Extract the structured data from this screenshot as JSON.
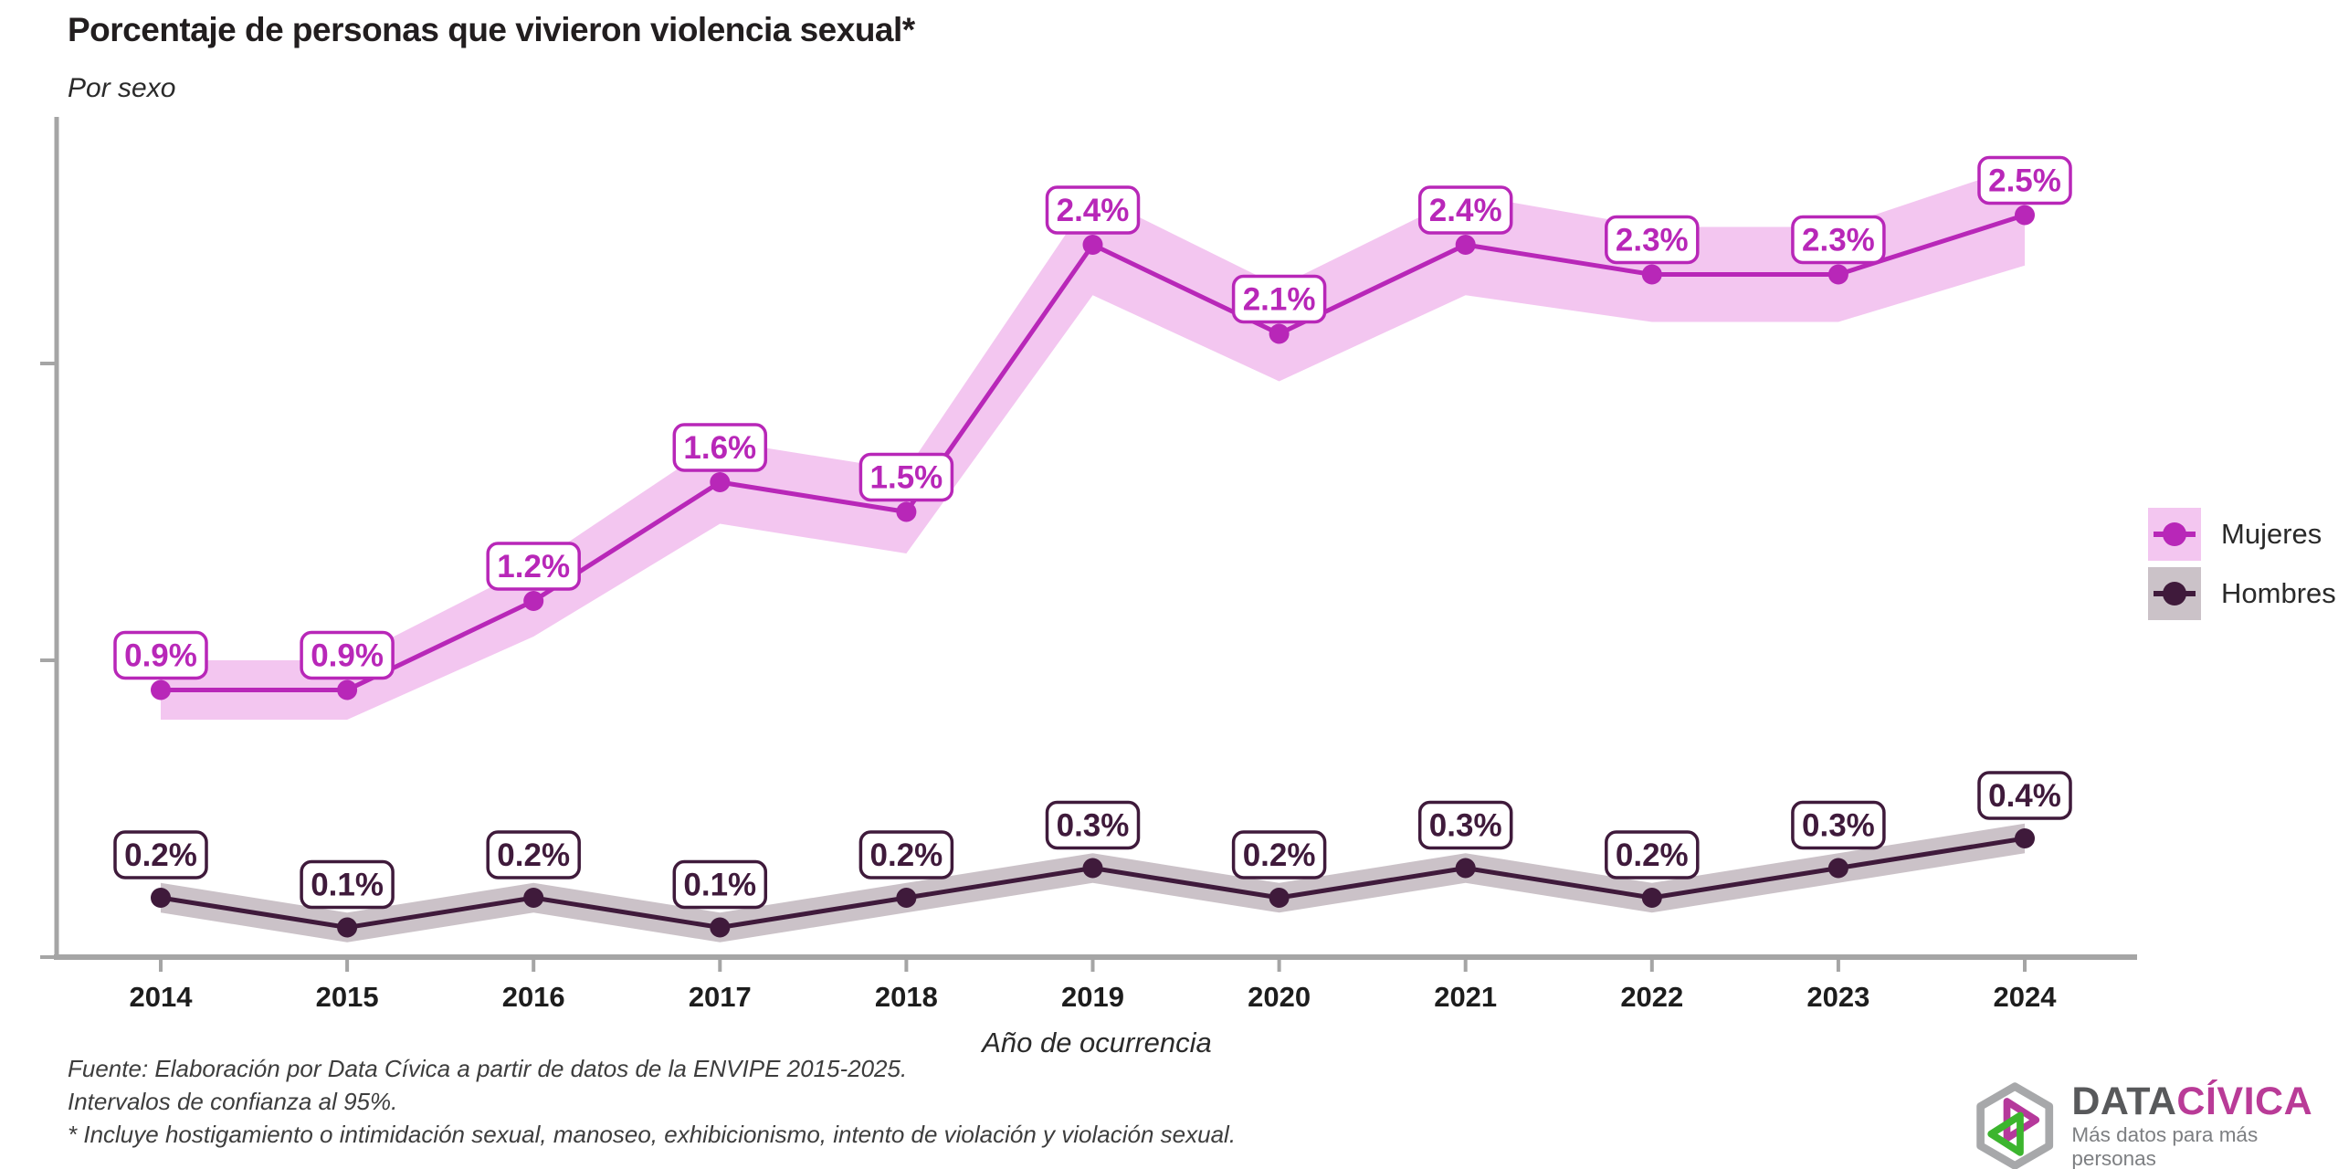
{
  "header": {
    "title": "Porcentaje de personas que vivieron violencia sexual*",
    "subtitle": "Por sexo"
  },
  "chart_data": {
    "type": "line",
    "x": [
      2014,
      2015,
      2016,
      2017,
      2018,
      2019,
      2020,
      2021,
      2022,
      2023,
      2024
    ],
    "xlabel": "Año de ocurrencia",
    "ylabel": "",
    "ylim": [
      0,
      2.9
    ],
    "yticks": [
      0,
      1,
      2
    ],
    "yticks_labeled": false,
    "grid": false,
    "legend_position": "right",
    "axis_color": "#a5a5a5",
    "series": [
      {
        "name": "Mujeres",
        "color": "#b827b8",
        "band_color": "#f3c6f0",
        "values": [
          0.9,
          0.9,
          1.2,
          1.6,
          1.5,
          2.4,
          2.1,
          2.4,
          2.3,
          2.3,
          2.5
        ],
        "labels": [
          "0.9%",
          "0.9%",
          "1.2%",
          "1.6%",
          "1.5%",
          "2.4%",
          "2.1%",
          "2.4%",
          "2.3%",
          "2.3%",
          "2.5%"
        ],
        "ci_halfwidth": [
          0.1,
          0.1,
          0.12,
          0.14,
          0.14,
          0.17,
          0.16,
          0.17,
          0.16,
          0.16,
          0.17
        ]
      },
      {
        "name": "Hombres",
        "color": "#3f1a3b",
        "band_color": "#cbc2c8",
        "values": [
          0.2,
          0.1,
          0.2,
          0.1,
          0.2,
          0.3,
          0.2,
          0.3,
          0.2,
          0.3,
          0.4
        ],
        "labels": [
          "0.2%",
          "0.1%",
          "0.2%",
          "0.1%",
          "0.2%",
          "0.3%",
          "0.2%",
          "0.3%",
          "0.2%",
          "0.3%",
          "0.4%"
        ],
        "ci_halfwidth": [
          0.05,
          0.05,
          0.05,
          0.05,
          0.05,
          0.05,
          0.05,
          0.05,
          0.05,
          0.05,
          0.05
        ]
      }
    ]
  },
  "footer": {
    "lines": [
      "Fuente: Elaboración por Data Cívica a partir de datos de la ENVIPE 2015-2025.",
      "Intervalos de confianza al 95%.",
      "* Incluye hostigamiento o intimidación sexual, manoseo, exhibicionismo, intento de violación y violación sexual."
    ]
  },
  "logo": {
    "brand_part1": "DATA",
    "brand_part2": "CÍVICA",
    "tagline": "Más datos para más personas"
  }
}
